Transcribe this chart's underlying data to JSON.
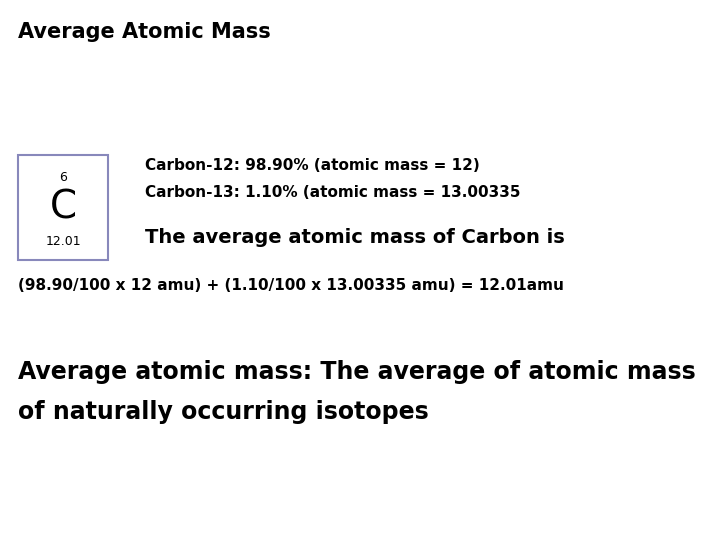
{
  "title": "Average Atomic Mass",
  "title_fontsize": 15,
  "title_fontweight": "bold",
  "bg_color": "#ffffff",
  "text_color": "#000000",
  "box_color": "#8888bb",
  "atomic_number": "6",
  "element_symbol": "C",
  "atomic_mass_label": "12.01",
  "line1": "Carbon-12: 98.90% (atomic mass = 12)",
  "line2": "Carbon-13: 1.10% (atomic mass = 13.00335",
  "avg_label": "The average atomic mass of Carbon is",
  "calc_line": "(98.90/100 x 12 amu) + (1.10/100 x 13.00335 amu) = 12.01amu",
  "definition_line1": "Average atomic mass: The average of atomic mass",
  "definition_line2": "of naturally occurring isotopes",
  "font_family": "DejaVu Sans"
}
